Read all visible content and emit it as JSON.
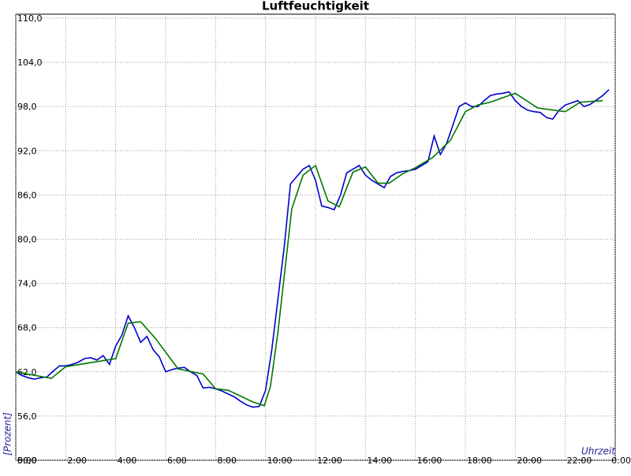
{
  "chart_data": {
    "type": "line",
    "title": "Luftfeuchtigkeit",
    "y_label": "[Prozent]",
    "x_label": "Uhrzeit",
    "xlim": [
      0,
      24
    ],
    "ylim": [
      50,
      110
    ],
    "grid": true,
    "xticks": [
      {
        "value": 0,
        "label": "0:00"
      },
      {
        "value": 2,
        "label": "2:00"
      },
      {
        "value": 4,
        "label": "4:00"
      },
      {
        "value": 6,
        "label": "6:00"
      },
      {
        "value": 8,
        "label": "8:00"
      },
      {
        "value": 10,
        "label": "10:00"
      },
      {
        "value": 12,
        "label": "12:00"
      },
      {
        "value": 14,
        "label": "14:00"
      },
      {
        "value": 16,
        "label": "16:00"
      },
      {
        "value": 18,
        "label": "18:00"
      },
      {
        "value": 20,
        "label": "20:00"
      },
      {
        "value": 22,
        "label": "22:00"
      },
      {
        "value": 24,
        "label": "0:00"
      }
    ],
    "yticks": [
      {
        "value": 50,
        "label": "50,0"
      },
      {
        "value": 56,
        "label": "56,0"
      },
      {
        "value": 62,
        "label": "62,0"
      },
      {
        "value": 68,
        "label": "68,0"
      },
      {
        "value": 74,
        "label": "74,0"
      },
      {
        "value": 80,
        "label": "80,0"
      },
      {
        "value": 86,
        "label": "86,0"
      },
      {
        "value": 92,
        "label": "92,0"
      },
      {
        "value": 98,
        "label": "98,0"
      },
      {
        "value": 104,
        "label": "104,0"
      },
      {
        "value": 110,
        "label": "110,0"
      }
    ],
    "series": [
      {
        "color": "#0000cc",
        "x": [
          0,
          0.25,
          0.5,
          0.75,
          1,
          1.25,
          1.5,
          1.75,
          2,
          2.25,
          2.5,
          2.75,
          3,
          3.25,
          3.5,
          3.75,
          4,
          4.25,
          4.5,
          4.75,
          5,
          5.25,
          5.5,
          5.75,
          6,
          6.25,
          6.5,
          6.75,
          7,
          7.25,
          7.5,
          7.75,
          8,
          8.25,
          8.5,
          8.75,
          9,
          9.25,
          9.5,
          9.75,
          10,
          10.25,
          10.5,
          10.75,
          11,
          11.25,
          11.5,
          11.75,
          12,
          12.25,
          12.5,
          12.75,
          13,
          13.25,
          13.5,
          13.75,
          14,
          14.25,
          14.5,
          14.75,
          15,
          15.25,
          15.5,
          15.75,
          16,
          16.25,
          16.5,
          16.75,
          17,
          17.25,
          17.5,
          17.75,
          18,
          18.25,
          18.5,
          18.75,
          19,
          19.25,
          19.5,
          19.75,
          20,
          20.25,
          20.5,
          20.75,
          21,
          21.25,
          21.5,
          21.75,
          22,
          22.25,
          22.5,
          22.75,
          23,
          23.25,
          23.5,
          23.75
        ],
        "values": [
          62.0,
          61.5,
          61.2,
          61.0,
          61.2,
          61.3,
          62.1,
          62.8,
          62.8,
          63.0,
          63.3,
          63.8,
          63.9,
          63.6,
          64.2,
          63.0,
          65.5,
          67.0,
          69.6,
          68.0,
          66.0,
          66.8,
          65.0,
          64.0,
          62.0,
          62.3,
          62.5,
          62.6,
          62.0,
          61.5,
          59.8,
          59.9,
          59.7,
          59.4,
          59.0,
          58.6,
          58.0,
          57.5,
          57.2,
          57.3,
          59.5,
          65.0,
          72.0,
          79.0,
          87.5,
          88.5,
          89.5,
          90.0,
          88.0,
          84.5,
          84.3,
          84.0,
          86.0,
          89.0,
          89.5,
          90.0,
          88.7,
          88.0,
          87.5,
          87.0,
          88.5,
          89.0,
          89.2,
          89.3,
          89.5,
          90.0,
          90.5,
          94.0,
          91.5,
          93.0,
          95.5,
          98.0,
          98.5,
          98.0,
          98.0,
          98.8,
          99.5,
          99.7,
          99.8,
          100.0,
          98.8,
          98.0,
          97.5,
          97.3,
          97.2,
          96.5,
          96.3,
          97.5,
          98.2,
          98.5,
          98.8,
          98.0,
          98.3,
          98.9,
          99.5,
          100.3
        ]
      },
      {
        "color": "#007700",
        "x": [
          0,
          1.42,
          2,
          4,
          4.5,
          5,
          5.6,
          6.5,
          7.5,
          8,
          8.5,
          9.5,
          9.95,
          10.2,
          10.5,
          11.05,
          11.5,
          12,
          12.5,
          12.95,
          13.5,
          14,
          14.5,
          14.95,
          15.5,
          16,
          16.7,
          17.4,
          18,
          18.5,
          19,
          20,
          20.9,
          22,
          22.6,
          23.5
        ],
        "values": [
          62.0,
          61.1,
          62.7,
          63.8,
          68.6,
          68.8,
          66.5,
          62.4,
          61.7,
          59.7,
          59.5,
          57.9,
          57.4,
          60.1,
          67.5,
          84.1,
          88.7,
          90.0,
          85.2,
          84.4,
          89.1,
          89.8,
          87.6,
          87.6,
          88.9,
          89.7,
          91.1,
          93.4,
          97.3,
          98.2,
          98.6,
          99.8,
          97.8,
          97.3,
          98.6,
          98.8
        ]
      }
    ]
  }
}
